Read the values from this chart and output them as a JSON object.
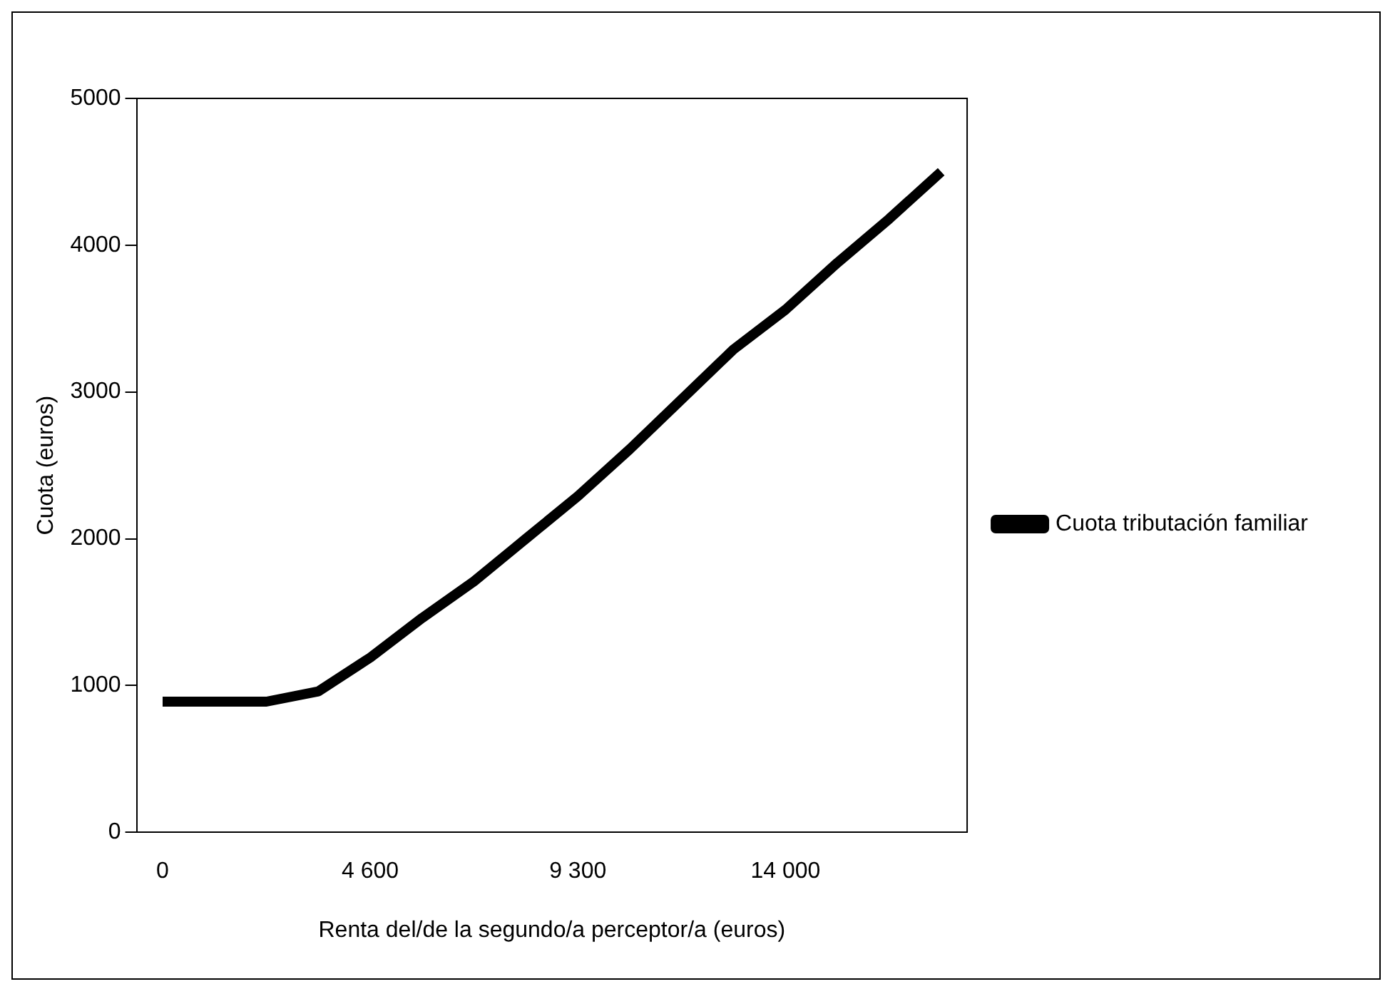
{
  "chart_data": {
    "type": "line",
    "xlabel": "Renta del/de la segundo/a perceptor/a (euros)",
    "ylabel": "Cuota (euros)",
    "categories": [
      "0",
      null,
      null,
      null,
      "4 600",
      null,
      null,
      null,
      "9 300",
      null,
      null,
      null,
      "14 000",
      null,
      null,
      null
    ],
    "series": [
      {
        "name": "Cuota tributación familiar",
        "color": "#000000",
        "values": [
          890,
          890,
          890,
          960,
          1190,
          1460,
          1710,
          2000,
          2290,
          2610,
          2950,
          3290,
          3560,
          3880,
          4180,
          4500
        ]
      }
    ],
    "ylim": [
      0,
      5000
    ],
    "yticks": [
      0,
      1000,
      2000,
      3000,
      4000,
      5000
    ],
    "grid": false,
    "legend": "right",
    "marker": "none",
    "line_style": "solid"
  }
}
